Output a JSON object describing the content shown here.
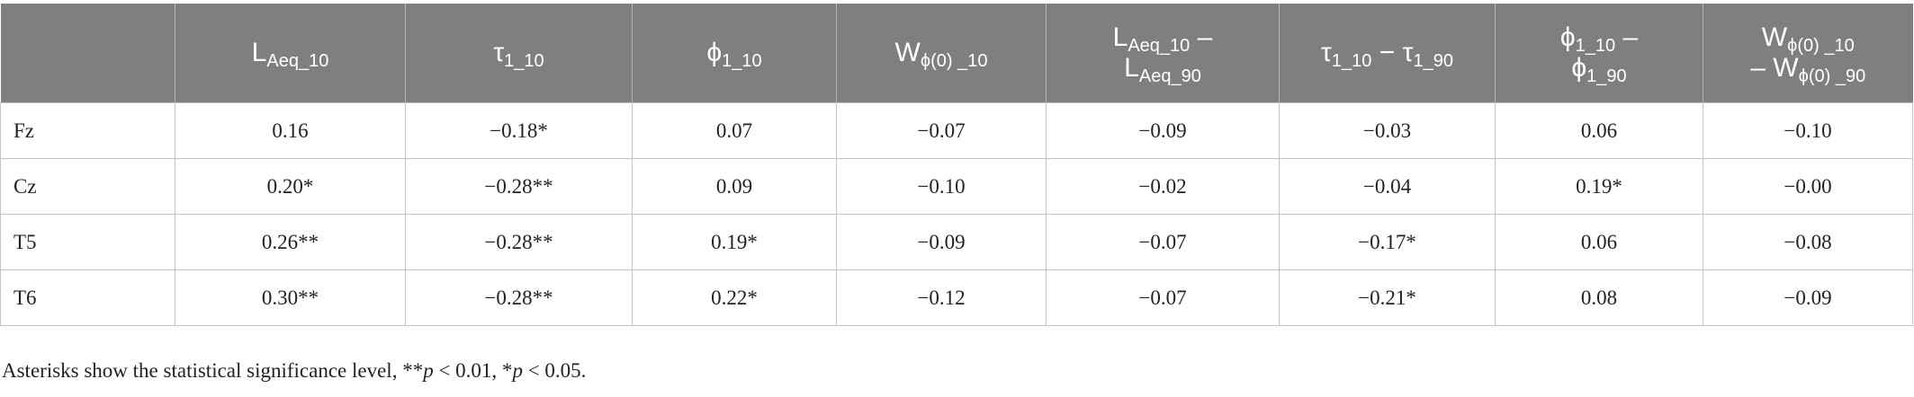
{
  "header": {
    "columns": [
      [
        [
          "L",
          "Aeq_10"
        ]
      ],
      [
        [
          "τ",
          "1_10"
        ]
      ],
      [
        [
          "ϕ",
          "1_10"
        ]
      ],
      [
        [
          "W",
          "ϕ(0) _10"
        ]
      ],
      [
        [
          "L",
          "Aeq_10",
          " –"
        ],
        [
          "L",
          "Aeq_90"
        ]
      ],
      [
        [
          "τ",
          "1_10",
          " − τ",
          "1_90"
        ]
      ],
      [
        [
          "ϕ",
          "1_10",
          " –"
        ],
        [
          "ϕ",
          "1_90"
        ]
      ],
      [
        [
          "W",
          "ϕ(0) _10"
        ],
        [
          "– W",
          "ϕ(0) _90"
        ]
      ]
    ]
  },
  "table": {
    "rows": [
      {
        "label": "Fz",
        "cells": [
          "0.16",
          "−0.18*",
          "0.07",
          "−0.07",
          "−0.09",
          "−0.03",
          "0.06",
          "−0.10"
        ]
      },
      {
        "label": "Cz",
        "cells": [
          "0.20*",
          "−0.28**",
          "0.09",
          "−0.10",
          "−0.02",
          "−0.04",
          "0.19*",
          "−0.00"
        ]
      },
      {
        "label": "T5",
        "cells": [
          "0.26**",
          "−0.28**",
          "0.19*",
          "−0.09",
          "−0.07",
          "−0.17*",
          "0.06",
          "−0.08"
        ]
      },
      {
        "label": "T6",
        "cells": [
          "0.30**",
          "−0.28**",
          "0.22*",
          "−0.12",
          "−0.07",
          "−0.21*",
          "0.08",
          "−0.09"
        ]
      }
    ]
  },
  "footnote": [
    "Asterisks show the statistical significance level, **",
    "p",
    " < 0.01, *",
    "p",
    " < 0.05."
  ]
}
